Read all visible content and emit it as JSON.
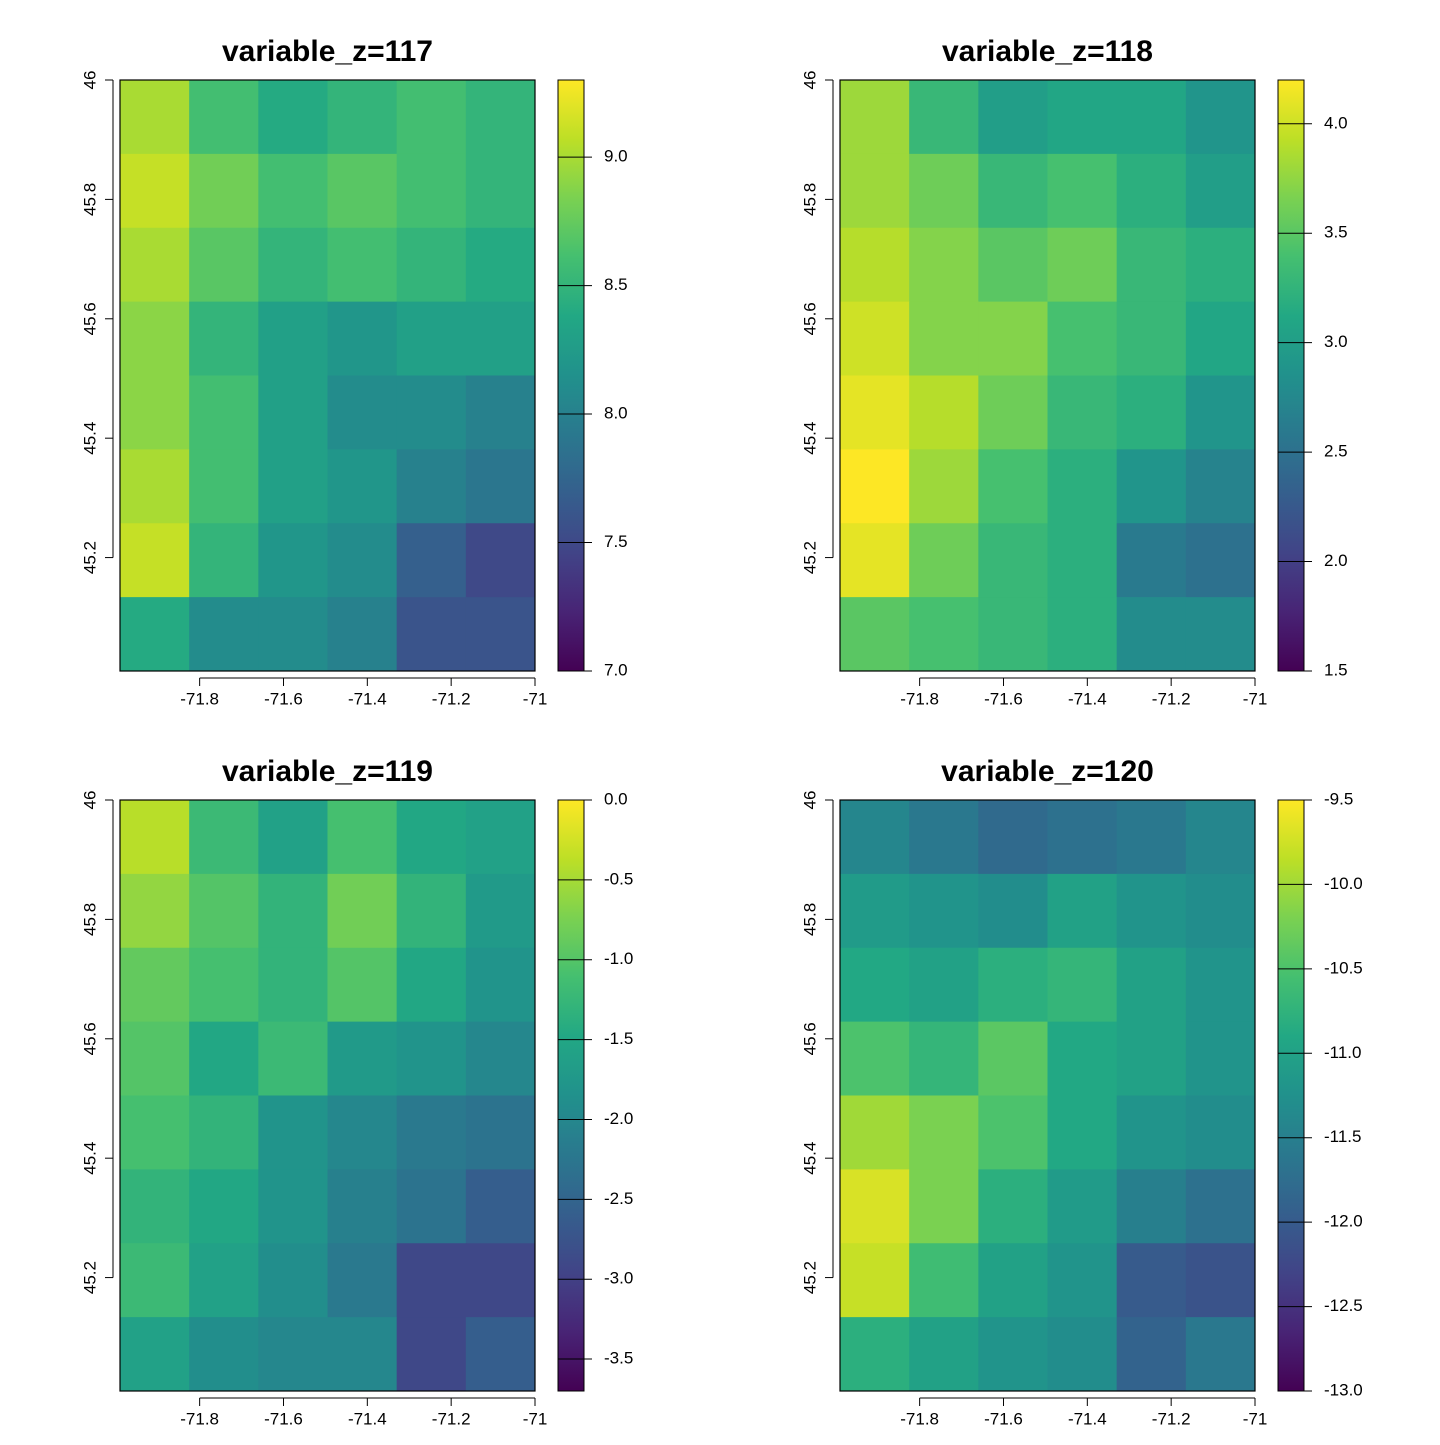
{
  "chart_data": [
    {
      "type": "heatmap",
      "title": "variable_z=117",
      "colormap": "viridis",
      "xlim": [
        -71.99,
        -71.0
      ],
      "ylim": [
        45.01,
        46.0
      ],
      "xticks": [
        -71.8,
        -71.6,
        -71.4,
        -71.2,
        -71
      ],
      "yticks": [
        45.2,
        45.4,
        45.6,
        45.8,
        46
      ],
      "zlim": [
        7.0,
        9.3
      ],
      "zticks": [
        {
          "value": 7,
          "label": "7.0"
        },
        7.5,
        {
          "value": 8,
          "label": "8.0"
        },
        8.5,
        {
          "value": 9,
          "label": "9.0"
        }
      ],
      "values": [
        [
          9.0,
          8.6,
          8.4,
          8.5,
          8.6,
          8.5
        ],
        [
          9.1,
          8.8,
          8.6,
          8.7,
          8.6,
          8.5
        ],
        [
          9.0,
          8.7,
          8.5,
          8.6,
          8.5,
          8.4
        ],
        [
          8.9,
          8.5,
          8.3,
          8.2,
          8.3,
          8.3
        ],
        [
          8.9,
          8.6,
          8.3,
          8.1,
          8.1,
          8.0
        ],
        [
          9.0,
          8.6,
          8.3,
          8.2,
          8.0,
          7.9
        ],
        [
          9.1,
          8.5,
          8.2,
          8.1,
          7.7,
          7.5
        ],
        [
          8.4,
          8.1,
          8.1,
          8.0,
          7.6,
          7.6
        ]
      ]
    },
    {
      "type": "heatmap",
      "title": "variable_z=118",
      "colormap": "viridis",
      "xlim": [
        -71.99,
        -71.0
      ],
      "ylim": [
        45.01,
        46.0
      ],
      "xticks": [
        -71.8,
        -71.6,
        -71.4,
        -71.2,
        -71
      ],
      "yticks": [
        45.2,
        45.4,
        45.6,
        45.8,
        46
      ],
      "zlim": [
        1.5,
        4.2
      ],
      "zticks": [
        1.5,
        {
          "value": 2,
          "label": "2.0"
        },
        2.5,
        {
          "value": 3,
          "label": "3.0"
        },
        3.5,
        {
          "value": 4,
          "label": "4.0"
        }
      ],
      "values": [
        [
          3.8,
          3.3,
          3.0,
          3.1,
          3.1,
          2.9
        ],
        [
          3.8,
          3.6,
          3.3,
          3.4,
          3.2,
          3.0
        ],
        [
          3.9,
          3.7,
          3.5,
          3.6,
          3.3,
          3.2
        ],
        [
          4.0,
          3.7,
          3.7,
          3.4,
          3.3,
          3.1
        ],
        [
          4.1,
          3.9,
          3.6,
          3.3,
          3.2,
          2.9
        ],
        [
          4.2,
          3.8,
          3.4,
          3.2,
          2.9,
          2.7
        ],
        [
          4.1,
          3.6,
          3.3,
          3.2,
          2.6,
          2.5
        ],
        [
          3.5,
          3.4,
          3.3,
          3.2,
          2.8,
          2.8
        ]
      ]
    },
    {
      "type": "heatmap",
      "title": "variable_z=119",
      "colormap": "viridis",
      "xlim": [
        -71.99,
        -71.0
      ],
      "ylim": [
        45.01,
        46.0
      ],
      "xticks": [
        -71.8,
        -71.6,
        -71.4,
        -71.2,
        -71
      ],
      "yticks": [
        45.2,
        45.4,
        45.6,
        45.8,
        46
      ],
      "zlim": [
        -3.7,
        0.0
      ],
      "zticks": [
        -3.5,
        {
          "value": -3,
          "label": "-3.0"
        },
        -2.5,
        {
          "value": -2,
          "label": "-2.0"
        },
        -1.5,
        {
          "value": -1,
          "label": "-1.0"
        },
        -0.5,
        {
          "value": 0,
          "label": "0.0"
        }
      ],
      "values": [
        [
          -0.4,
          -1.2,
          -1.6,
          -1.1,
          -1.5,
          -1.6
        ],
        [
          -0.6,
          -1.0,
          -1.3,
          -0.8,
          -1.3,
          -1.7
        ],
        [
          -0.9,
          -1.1,
          -1.3,
          -1.0,
          -1.5,
          -1.8
        ],
        [
          -1.0,
          -1.5,
          -1.2,
          -1.7,
          -1.8,
          -2.0
        ],
        [
          -1.1,
          -1.3,
          -1.8,
          -2.0,
          -2.2,
          -2.3
        ],
        [
          -1.3,
          -1.5,
          -1.8,
          -2.1,
          -2.3,
          -2.6
        ],
        [
          -1.2,
          -1.6,
          -1.9,
          -2.2,
          -2.9,
          -2.9
        ],
        [
          -1.6,
          -1.9,
          -2.0,
          -2.0,
          -2.9,
          -2.6
        ]
      ]
    },
    {
      "type": "heatmap",
      "title": "variable_z=120",
      "colormap": "viridis",
      "xlim": [
        -71.99,
        -71.0
      ],
      "ylim": [
        45.01,
        46.0
      ],
      "xticks": [
        -71.8,
        -71.6,
        -71.4,
        -71.2,
        -71
      ],
      "yticks": [
        45.2,
        45.4,
        45.6,
        45.8,
        46
      ],
      "zlim": [
        -13.0,
        -9.5
      ],
      "zticks": [
        {
          "value": -13,
          "label": "-13.0"
        },
        -12.5,
        {
          "value": -12,
          "label": "-12.0"
        },
        -11.5,
        {
          "value": -11,
          "label": "-11.0"
        },
        -10.5,
        {
          "value": -10,
          "label": "-10.0"
        },
        -9.5
      ],
      "values": [
        [
          -11.4,
          -11.6,
          -11.8,
          -11.7,
          -11.6,
          -11.4
        ],
        [
          -11.1,
          -11.2,
          -11.3,
          -11.0,
          -11.2,
          -11.3
        ],
        [
          -10.9,
          -11.0,
          -10.8,
          -10.7,
          -11.0,
          -11.2
        ],
        [
          -10.5,
          -10.7,
          -10.4,
          -10.9,
          -11.0,
          -11.2
        ],
        [
          -10.0,
          -10.2,
          -10.5,
          -10.9,
          -11.2,
          -11.3
        ],
        [
          -9.7,
          -10.2,
          -10.8,
          -11.1,
          -11.5,
          -11.7
        ],
        [
          -9.8,
          -10.6,
          -11.0,
          -11.2,
          -12.0,
          -12.1
        ],
        [
          -10.8,
          -11.0,
          -11.2,
          -11.3,
          -11.9,
          -11.6
        ]
      ]
    }
  ]
}
